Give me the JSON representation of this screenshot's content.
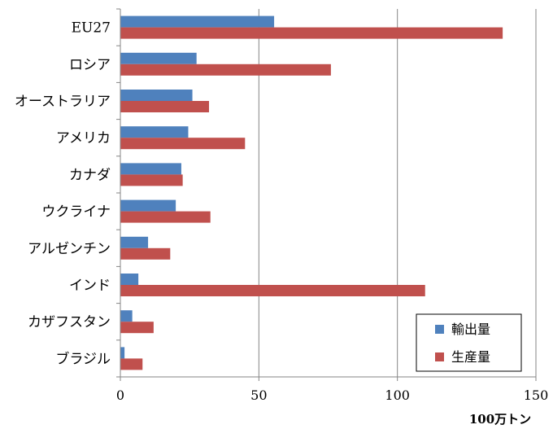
{
  "chart_data": {
    "type": "bar",
    "orientation": "horizontal",
    "categories": [
      "EU27",
      "ロシア",
      "オーストラリア",
      "アメリカ",
      "カナダ",
      "ウクライナ",
      "アルゼンチン",
      "インド",
      "カザフスタン",
      "ブラジル"
    ],
    "series": [
      {
        "name": "輸出量",
        "color": "#4f81bd",
        "values": [
          55.5,
          27.5,
          26,
          24.5,
          22,
          20,
          10,
          6.5,
          4.3,
          1.5
        ]
      },
      {
        "name": "生産量",
        "color": "#c0504d",
        "values": [
          138,
          76,
          32,
          45,
          22.5,
          32.5,
          18,
          110,
          12,
          8
        ]
      }
    ],
    "xlim": [
      0,
      150
    ],
    "xticks": [
      "0",
      "50",
      "100",
      "150"
    ],
    "xlabel": "100万トン",
    "title": "",
    "ylabel": "",
    "grid": "vertical",
    "legend_position": "bottom-right"
  }
}
